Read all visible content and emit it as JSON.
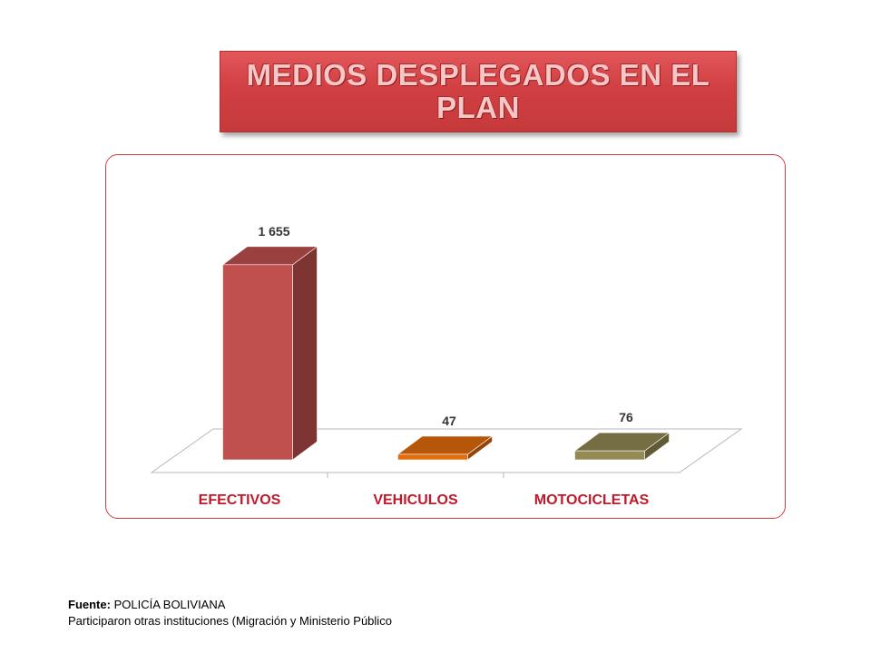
{
  "title": "MEDIOS DESPLEGADOS  EN EL PLAN",
  "chart_data": {
    "type": "bar",
    "categories": [
      "EFECTIVOS",
      "VEHICULOS",
      "MOTOCICLETAS"
    ],
    "values": [
      1655,
      47,
      76
    ],
    "value_labels": [
      "1 655",
      "47",
      "76"
    ],
    "colors": [
      "#c0504d",
      "#e46c0a",
      "#948a54"
    ],
    "ylim": [
      0,
      1700
    ],
    "grid": false,
    "legend": "none"
  },
  "footer": {
    "source_label": "Fuente:",
    "source_value": "POLICÍA BOLIVIANA",
    "note": "Participaron otras instituciones (Migración y Ministerio Público"
  }
}
